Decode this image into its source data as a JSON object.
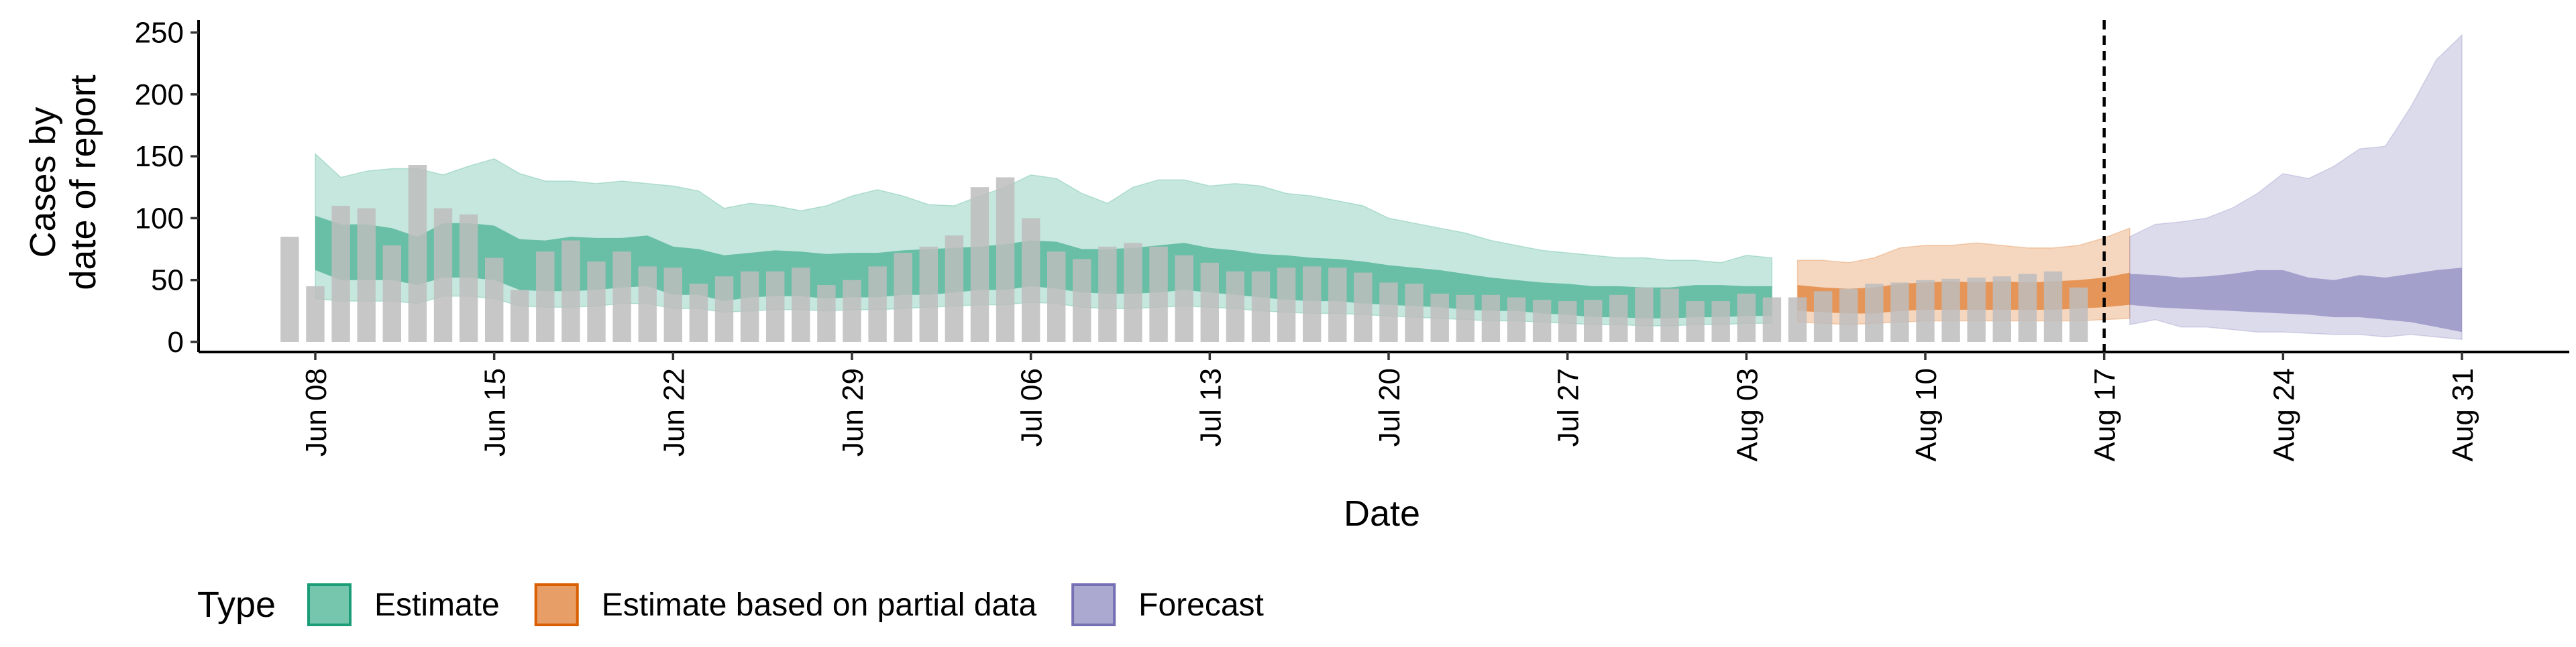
{
  "chart_data": {
    "type": "area",
    "xlabel": "Date",
    "ylabel_lines": [
      "Cases by",
      "date of report"
    ],
    "ylim": [
      0,
      260
    ],
    "yticks": [
      0,
      50,
      100,
      150,
      200,
      250
    ],
    "grid": false,
    "x_date_range": [
      "2020-06-08",
      "2020-08-31"
    ],
    "xticks": [
      {
        "date": "2020-06-08",
        "label": "Jun 08"
      },
      {
        "date": "2020-06-15",
        "label": "Jun 15"
      },
      {
        "date": "2020-06-22",
        "label": "Jun 22"
      },
      {
        "date": "2020-06-29",
        "label": "Jun 29"
      },
      {
        "date": "2020-07-06",
        "label": "Jul 06"
      },
      {
        "date": "2020-07-13",
        "label": "Jul 13"
      },
      {
        "date": "2020-07-20",
        "label": "Jul 20"
      },
      {
        "date": "2020-07-27",
        "label": "Jul 27"
      },
      {
        "date": "2020-08-03",
        "label": "Aug 03"
      },
      {
        "date": "2020-08-10",
        "label": "Aug 10"
      },
      {
        "date": "2020-08-17",
        "label": "Aug 17"
      },
      {
        "date": "2020-08-24",
        "label": "Aug 24"
      },
      {
        "date": "2020-08-31",
        "label": "Aug 31"
      }
    ],
    "vline_date": "2020-08-17",
    "bars": {
      "start_date": "2020-06-07",
      "color": "#bdbdbd",
      "values": [
        85,
        45,
        110,
        108,
        78,
        143,
        108,
        103,
        68,
        42,
        73,
        82,
        65,
        73,
        61,
        60,
        47,
        53,
        57,
        57,
        60,
        46,
        50,
        61,
        72,
        77,
        86,
        125,
        133,
        100,
        73,
        67,
        77,
        80,
        77,
        70,
        64,
        57,
        57,
        60,
        61,
        60,
        56,
        48,
        47,
        39,
        38,
        38,
        36,
        34,
        33,
        34,
        38,
        44,
        43,
        33,
        33,
        39,
        36,
        36,
        41,
        43,
        47,
        48,
        50,
        51,
        52,
        53,
        55,
        57,
        44
      ]
    },
    "series": [
      {
        "name": "Estimate",
        "color": "#1b9e77",
        "start_date": "2020-06-08",
        "inner_upper": [
          102,
          95,
          95,
          92,
          85,
          96,
          96,
          94,
          83,
          82,
          85,
          84,
          84,
          86,
          77,
          75,
          70,
          72,
          74,
          73,
          71,
          72,
          72,
          74,
          75,
          76,
          77,
          79,
          82,
          81,
          75,
          75,
          76,
          78,
          80,
          76,
          74,
          71,
          70,
          68,
          67,
          65,
          62,
          60,
          58,
          55,
          52,
          50,
          48,
          47,
          45,
          45,
          44,
          44,
          46,
          46,
          45,
          45
        ],
        "inner_lower": [
          58,
          50,
          50,
          50,
          46,
          52,
          52,
          50,
          42,
          41,
          41,
          42,
          44,
          45,
          38,
          38,
          33,
          36,
          37,
          37,
          35,
          36,
          36,
          38,
          38,
          40,
          42,
          42,
          45,
          43,
          40,
          39,
          39,
          40,
          42,
          40,
          38,
          36,
          34,
          33,
          33,
          31,
          30,
          29,
          28,
          26,
          25,
          25,
          23,
          22,
          20,
          20,
          19,
          19,
          20,
          20,
          21,
          21
        ],
        "outer_upper": [
          152,
          133,
          138,
          140,
          140,
          135,
          142,
          148,
          136,
          130,
          130,
          128,
          130,
          128,
          126,
          122,
          108,
          112,
          110,
          106,
          110,
          118,
          123,
          118,
          111,
          110,
          118,
          125,
          135,
          132,
          120,
          112,
          125,
          131,
          131,
          126,
          128,
          126,
          120,
          118,
          114,
          110,
          100,
          96,
          92,
          88,
          82,
          78,
          74,
          72,
          70,
          68,
          68,
          66,
          66,
          64,
          70,
          68
        ],
        "outer_lower": [
          35,
          33,
          33,
          33,
          31,
          37,
          37,
          35,
          29,
          28,
          28,
          29,
          31,
          31,
          27,
          27,
          24,
          25,
          26,
          26,
          25,
          26,
          26,
          27,
          28,
          29,
          30,
          30,
          32,
          31,
          28,
          27,
          27,
          28,
          29,
          28,
          27,
          25,
          24,
          23,
          23,
          22,
          21,
          20,
          19,
          18,
          17,
          17,
          16,
          15,
          14,
          14,
          13,
          13,
          14,
          14,
          15,
          15
        ]
      },
      {
        "name": "Estimate based on partial data",
        "color": "#d95f02",
        "start_date": "2020-08-05",
        "inner_upper": [
          46,
          44,
          43,
          44,
          47,
          48,
          49,
          48,
          49,
          48,
          49,
          50,
          52,
          56
        ],
        "inner_lower": [
          25,
          24,
          23,
          23,
          25,
          26,
          26,
          26,
          26,
          26,
          26,
          27,
          28,
          30
        ],
        "outer_upper": [
          66,
          66,
          64,
          68,
          76,
          78,
          78,
          80,
          78,
          76,
          76,
          78,
          84,
          92
        ],
        "outer_lower": [
          16,
          15,
          14,
          15,
          16,
          17,
          17,
          17,
          17,
          17,
          17,
          17,
          18,
          19
        ]
      },
      {
        "name": "Forecast",
        "color": "#7570b3",
        "start_date": "2020-08-18",
        "inner_upper": [
          55,
          54,
          52,
          53,
          55,
          58,
          58,
          52,
          50,
          54,
          52,
          55,
          58,
          60
        ],
        "inner_lower": [
          30,
          28,
          27,
          26,
          25,
          24,
          23,
          22,
          20,
          20,
          18,
          16,
          12,
          8
        ],
        "outer_upper": [
          85,
          95,
          97,
          100,
          108,
          120,
          136,
          132,
          142,
          156,
          158,
          190,
          228,
          248
        ],
        "outer_lower": [
          14,
          18,
          12,
          12,
          10,
          8,
          8,
          7,
          6,
          6,
          4,
          6,
          4,
          2
        ]
      }
    ],
    "legend": {
      "title": "Type",
      "position": "bottom",
      "entries": [
        "Estimate",
        "Estimate based on partial data",
        "Forecast"
      ]
    }
  }
}
